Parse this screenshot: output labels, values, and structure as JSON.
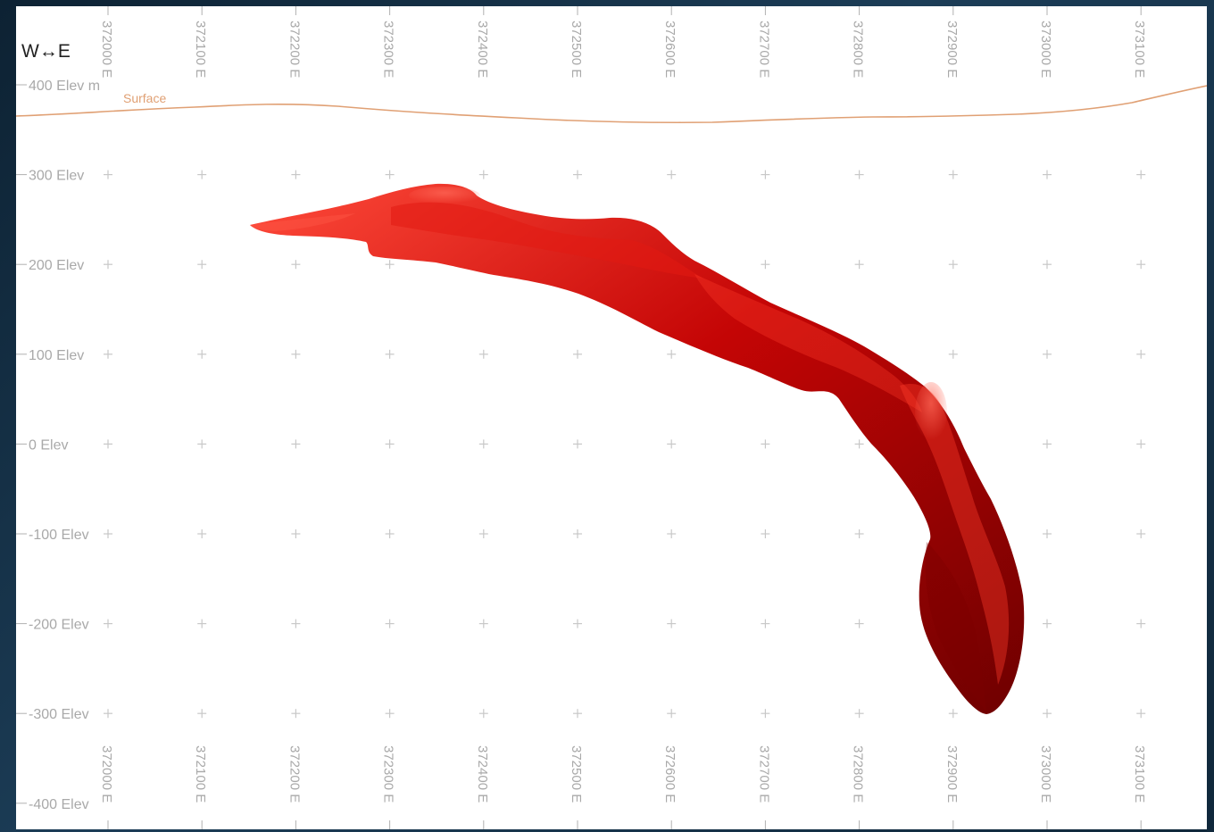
{
  "orientation": {
    "label": "W↔E",
    "west": "W",
    "east": "E"
  },
  "surface": {
    "label": "Surface",
    "color": "#e0a074"
  },
  "elevation_labels": [
    "400 Elev m",
    "300 Elev",
    "200 Elev",
    "100 Elev",
    "0 Elev",
    "-100 Elev",
    "-200 Elev",
    "-300 Elev",
    "-400 Elev"
  ],
  "easting_labels": [
    "372000 E",
    "372100 E",
    "372200 E",
    "372300 E",
    "372400 E",
    "372500 E",
    "372600 E",
    "372700 E",
    "372800 E",
    "372900 E",
    "373000 E",
    "373100 E"
  ],
  "orebody": {
    "color": "#c00000"
  }
}
